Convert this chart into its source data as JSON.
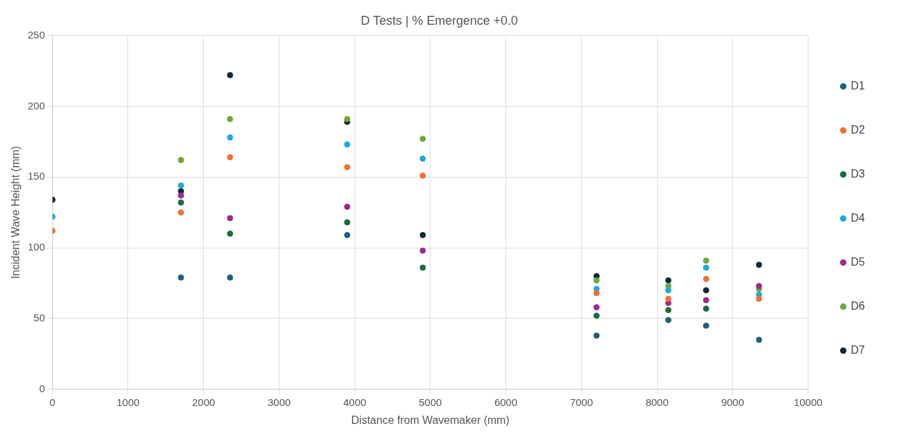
{
  "chart_data": {
    "type": "scatter",
    "title": "D Tests | % Emergence +0.0",
    "xlabel": "Distance from Wavemaker (mm)",
    "ylabel": "Incident Wave Height (mm)",
    "x": [
      0,
      1700,
      2350,
      3900,
      4900,
      7200,
      8150,
      8650,
      9350
    ],
    "series": [
      {
        "name": "D1",
        "color": "#1f5f7f",
        "values": [
          null,
          79,
          79,
          109,
          null,
          38,
          49,
          45,
          35
        ]
      },
      {
        "name": "D2",
        "color": "#f07030",
        "values": [
          112,
          125,
          164,
          157,
          151,
          68,
          64,
          78,
          64
        ]
      },
      {
        "name": "D3",
        "color": "#1a6b3a",
        "values": [
          null,
          132,
          110,
          118,
          86,
          52,
          56,
          57,
          null
        ]
      },
      {
        "name": "D4",
        "color": "#1ea8e0",
        "values": [
          122,
          144,
          178,
          173,
          163,
          71,
          70,
          86,
          67
        ]
      },
      {
        "name": "D5",
        "color": "#a0288c",
        "values": [
          null,
          137,
          121,
          129,
          98,
          58,
          61,
          63,
          73
        ]
      },
      {
        "name": "D6",
        "color": "#6aaa3a",
        "values": [
          null,
          162,
          191,
          191,
          177,
          77,
          73,
          91,
          71
        ]
      },
      {
        "name": "D7",
        "color": "#0f2a3a",
        "values": [
          134,
          140,
          222,
          189,
          109,
          80,
          77,
          70,
          88
        ]
      }
    ],
    "xlim": [
      0,
      10000
    ],
    "xticks": [
      0,
      1000,
      2000,
      3000,
      4000,
      5000,
      6000,
      7000,
      8000,
      9000,
      10000
    ],
    "ylim": [
      0,
      250
    ],
    "yticks": [
      0,
      50,
      100,
      150,
      200,
      250
    ],
    "grid": true,
    "legend": "right",
    "marker": "circle"
  }
}
